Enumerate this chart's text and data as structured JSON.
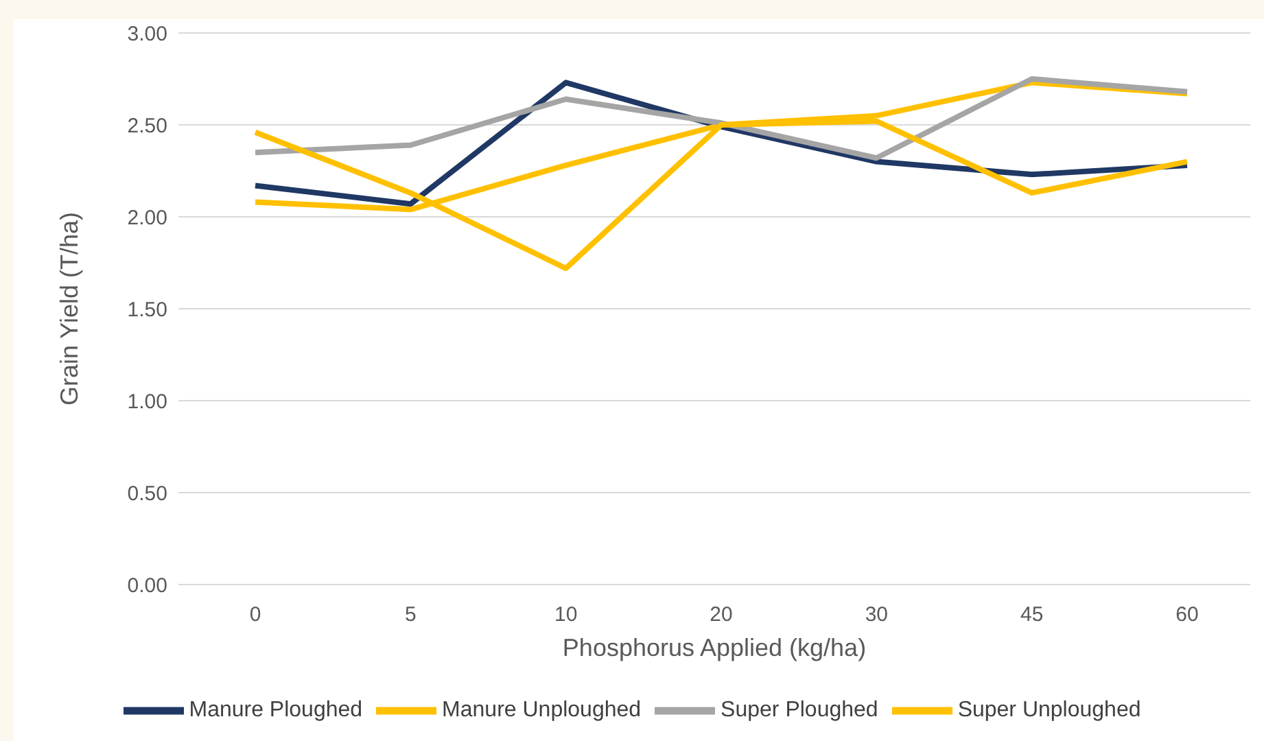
{
  "chart_data": {
    "type": "line",
    "xlabel": "Phosphorus Applied (kg/ha)",
    "ylabel": "Grain Yield (T/ha)",
    "categories": [
      "0",
      "5",
      "10",
      "20",
      "30",
      "45",
      "60"
    ],
    "series": [
      {
        "name": "Manure Ploughed",
        "color": "#1f3864",
        "values": [
          2.17,
          2.07,
          2.73,
          2.49,
          2.3,
          2.23,
          2.28
        ]
      },
      {
        "name": "Manure Unploughed",
        "color": "#ffc000",
        "values": [
          2.08,
          2.04,
          2.28,
          2.5,
          2.55,
          2.73,
          2.67
        ]
      },
      {
        "name": "Super Ploughed",
        "color": "#a5a5a5",
        "values": [
          2.35,
          2.39,
          2.64,
          2.51,
          2.32,
          2.75,
          2.68
        ]
      },
      {
        "name": "Super Unploughed",
        "color": "#ffc000",
        "values": [
          2.46,
          2.13,
          1.72,
          2.5,
          2.52,
          2.13,
          2.3
        ]
      }
    ],
    "ylim": [
      0,
      3
    ],
    "yticks": [
      {
        "value": 0,
        "label": "0.00"
      },
      {
        "value": 0.5,
        "label": "0.50"
      },
      {
        "value": 1,
        "label": "1.00"
      },
      {
        "value": 1.5,
        "label": "1.50"
      },
      {
        "value": 2,
        "label": "2.00"
      },
      {
        "value": 2.5,
        "label": "2.50"
      },
      {
        "value": 3,
        "label": "3.00"
      }
    ],
    "grid": "y",
    "legend": "bottom",
    "marker": "none",
    "line_style": "solid"
  }
}
